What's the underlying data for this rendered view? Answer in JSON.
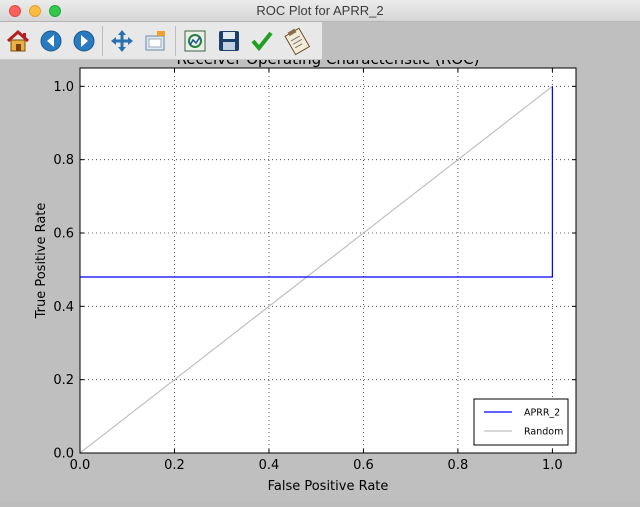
{
  "window": {
    "title": "ROC Plot for APRR_2"
  },
  "toolbar": {
    "buttons": [
      {
        "name": "home-button",
        "icon": "home-icon"
      },
      {
        "name": "back-button",
        "icon": "arrow-left-icon"
      },
      {
        "name": "forward-button",
        "icon": "arrow-right-icon"
      },
      {
        "name": "pan-button",
        "icon": "move-icon"
      },
      {
        "name": "zoom-button",
        "icon": "zoom-rect-icon"
      },
      {
        "name": "configure-subplots-button",
        "icon": "subplots-icon"
      },
      {
        "name": "save-button",
        "icon": "floppy-icon"
      },
      {
        "name": "check-button",
        "icon": "checkmark-icon"
      },
      {
        "name": "edit-parameters-button",
        "icon": "clipboard-icon"
      }
    ]
  },
  "chart_data": {
    "type": "line",
    "title": "Receiver Operating Characteristic (ROC)",
    "xlabel": "False Positive Rate",
    "ylabel": "True Positive Rate",
    "xlim": [
      0.0,
      1.05
    ],
    "ylim": [
      0.0,
      1.05
    ],
    "xticks": [
      "0.0",
      "0.2",
      "0.4",
      "0.6",
      "0.8",
      "1.0"
    ],
    "yticks": [
      "0.0",
      "0.2",
      "0.4",
      "0.6",
      "0.8",
      "1.0"
    ],
    "grid": true,
    "legend_position": "bottom-right",
    "series": [
      {
        "name": "APRR_2",
        "color": "#0000ff",
        "x": [
          0.0,
          1.0,
          1.0
        ],
        "y": [
          0.48,
          0.48,
          1.0
        ]
      },
      {
        "name": "Random",
        "color": "#c0c0c0",
        "x": [
          0.0,
          1.0
        ],
        "y": [
          0.0,
          1.0
        ]
      }
    ]
  }
}
